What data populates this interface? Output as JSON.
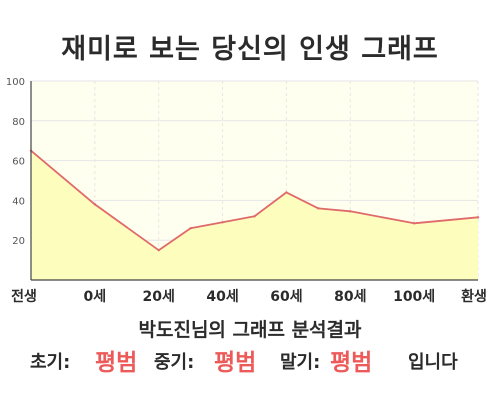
{
  "chart_data": {
    "type": "area",
    "title": "재미로 보는 당신의 인생 그래프",
    "categories": [
      "전생",
      "0세",
      "20세",
      "40세",
      "60세",
      "80세",
      "100세",
      "환생"
    ],
    "x": [
      -20,
      0,
      20,
      40,
      60,
      80,
      100,
      120
    ],
    "points": [
      {
        "x": -20,
        "y": 65
      },
      {
        "x": 0,
        "y": 38
      },
      {
        "x": 20,
        "y": 15
      },
      {
        "x": 30,
        "y": 26
      },
      {
        "x": 40,
        "y": 29
      },
      {
        "x": 50,
        "y": 32
      },
      {
        "x": 60,
        "y": 44
      },
      {
        "x": 70,
        "y": 36
      },
      {
        "x": 80,
        "y": 34.5
      },
      {
        "x": 100,
        "y": 28.5
      },
      {
        "x": 120,
        "y": 31.5
      }
    ],
    "yticks": [
      20,
      40,
      60,
      80,
      100
    ],
    "ylim": [
      0,
      100
    ],
    "xlim": [
      -20,
      120
    ],
    "grid": true,
    "colors": {
      "line": "#e06a6a",
      "fill": "#fdfdbe",
      "plot_bg": "#fffff0",
      "grid": "#e6e6e6",
      "axis": "#444444"
    }
  },
  "result": {
    "heading": "박도진님의 그래프 분석결과",
    "early_label": "초기:",
    "early_value": "평범",
    "mid_label": "중기:",
    "mid_value": "평범",
    "late_label": "말기:",
    "late_value": "평범",
    "suffix": "입니다"
  }
}
